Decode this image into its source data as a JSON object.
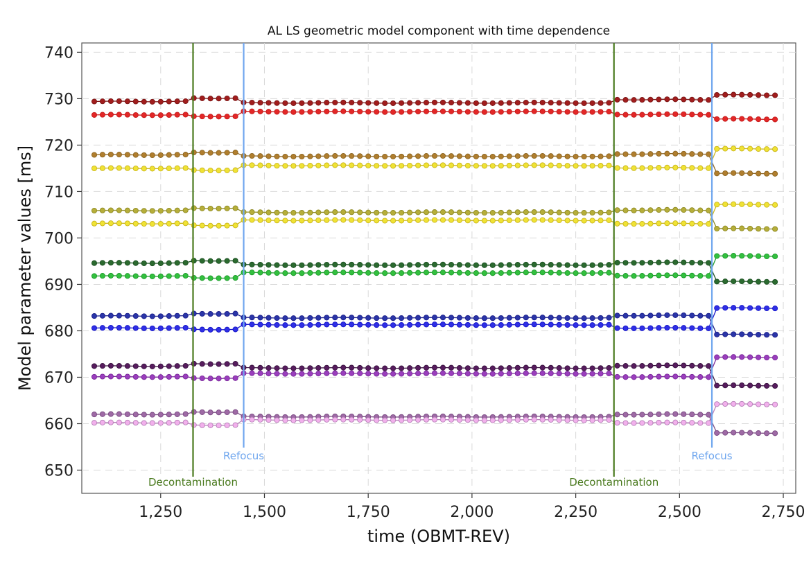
{
  "chart_data": {
    "type": "scatter",
    "title": "AL LS geometric model component with time dependence",
    "xlabel": "time (OBMT-REV)",
    "ylabel": "Model parameter values [ms]",
    "xlim": [
      1060,
      2780
    ],
    "ylim": [
      645,
      742
    ],
    "x_ticks": [
      1250,
      1500,
      1750,
      2000,
      2250,
      2500,
      2750
    ],
    "x_tick_labels": [
      "1,250",
      "1,500",
      "1,750",
      "2,000",
      "2,250",
      "2,500",
      "2,750"
    ],
    "y_ticks": [
      650,
      660,
      670,
      680,
      690,
      700,
      710,
      720,
      730,
      740
    ],
    "y_tick_labels": [
      "650",
      "660",
      "670",
      "680",
      "690",
      "700",
      "710",
      "720",
      "730",
      "740"
    ],
    "grid": true,
    "legend": "none",
    "sampling": {
      "x_start": 1090,
      "x_end": 2745,
      "step": 20
    },
    "events": [
      {
        "x": 1328,
        "label": "Decontamination",
        "color": "#4a7a1e"
      },
      {
        "x": 1450,
        "label": "Refocus",
        "color": "#6fa6ee"
      },
      {
        "x": 2342,
        "label": "Decontamination",
        "color": "#4a7a1e"
      },
      {
        "x": 2578,
        "label": "Refocus",
        "color": "#6fa6ee"
      }
    ],
    "series": [
      {
        "line": "#7a1616",
        "fill": "#a11d1d",
        "levels": [
          729.4,
          730.1,
          729.1,
          729.1,
          729.8,
          730.8
        ]
      },
      {
        "line": "#c41a1a",
        "fill": "#e32727",
        "levels": [
          726.5,
          726.2,
          727.2,
          727.2,
          726.6,
          725.6
        ]
      },
      {
        "line": "#8b6420",
        "fill": "#b07e2e",
        "levels": [
          717.9,
          718.4,
          717.6,
          717.6,
          718.1,
          713.9
        ]
      },
      {
        "line": "#c9b51c",
        "fill": "#f0e334",
        "levels": [
          715.0,
          714.6,
          715.6,
          715.6,
          715.1,
          719.2
        ]
      },
      {
        "line": "#8e8a22",
        "fill": "#b6ae3a",
        "levels": [
          705.9,
          706.4,
          705.5,
          705.5,
          706.0,
          702.0
        ]
      },
      {
        "line": "#c9b51c",
        "fill": "#f0e334",
        "levels": [
          703.1,
          702.7,
          703.8,
          703.8,
          703.1,
          707.2
        ]
      },
      {
        "line": "#1a4f20",
        "fill": "#2b6a2f",
        "levels": [
          694.6,
          695.1,
          694.2,
          694.2,
          694.7,
          690.6
        ]
      },
      {
        "line": "#1c9a2a",
        "fill": "#33c03f",
        "levels": [
          691.8,
          691.4,
          692.5,
          692.5,
          691.9,
          696.1
        ]
      },
      {
        "line": "#1b1f8a",
        "fill": "#2a35a8",
        "levels": [
          683.2,
          683.7,
          682.8,
          682.8,
          683.3,
          679.2
        ]
      },
      {
        "line": "#1414c8",
        "fill": "#2f2fe6",
        "levels": [
          680.6,
          680.3,
          681.3,
          681.3,
          680.6,
          684.9
        ]
      },
      {
        "line": "#3a1440",
        "fill": "#571c5e",
        "levels": [
          672.4,
          672.9,
          672.0,
          672.0,
          672.5,
          668.2
        ]
      },
      {
        "line": "#7a2a9a",
        "fill": "#9a3ebd",
        "levels": [
          670.1,
          669.8,
          670.8,
          670.8,
          670.1,
          674.3
        ]
      },
      {
        "line": "#7a4a82",
        "fill": "#9e6aa5",
        "levels": [
          662.0,
          662.5,
          661.5,
          661.5,
          662.0,
          658.0
        ]
      },
      {
        "line": "#b680b8",
        "fill": "#f2b0ec",
        "levels": [
          660.2,
          659.7,
          660.8,
          660.8,
          660.2,
          664.2
        ]
      }
    ]
  }
}
